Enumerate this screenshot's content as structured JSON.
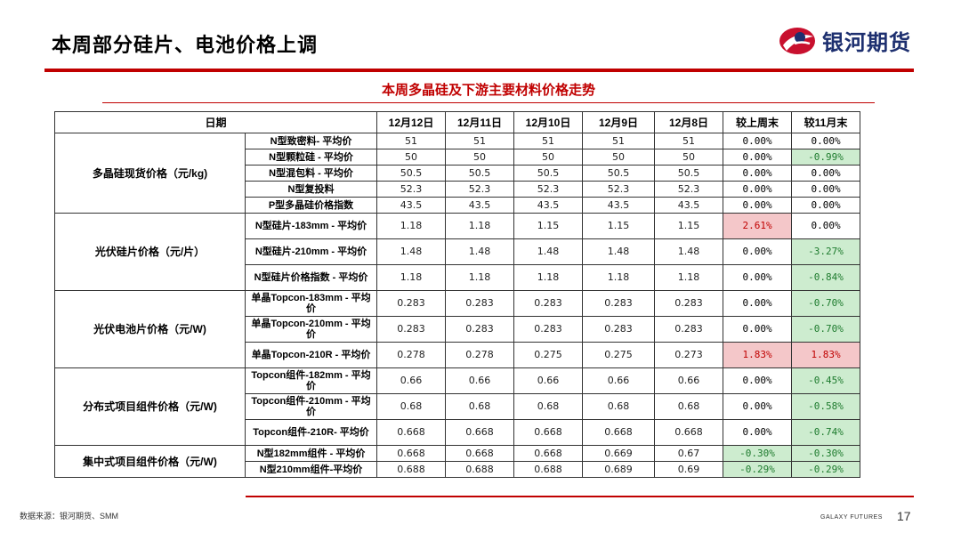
{
  "header": {
    "title": "本周部分硅片、电池价格上调",
    "logo_text": "银河期货"
  },
  "table": {
    "title": "本周多晶硅及下游主要材料价格走势",
    "columns": [
      "日期",
      "12月12日",
      "12月11日",
      "12月10日",
      "12月9日",
      "12月8日",
      "较上周末",
      "较11月末"
    ],
    "groups": [
      {
        "label": "多晶硅现货价格（元/kg)",
        "rows": [
          {
            "item": "N型致密料- 平均价",
            "values": [
              "51",
              "51",
              "51",
              "51",
              "51"
            ],
            "wow": "0.00%",
            "mom": "0.00%",
            "wow_dir": "flat",
            "mom_dir": "flat"
          },
          {
            "item": "N型颗粒硅 - 平均价",
            "values": [
              "50",
              "50",
              "50",
              "50",
              "50"
            ],
            "wow": "0.00%",
            "mom": "-0.99%",
            "wow_dir": "flat",
            "mom_dir": "down"
          },
          {
            "item": "N型混包料 - 平均价",
            "values": [
              "50.5",
              "50.5",
              "50.5",
              "50.5",
              "50.5"
            ],
            "wow": "0.00%",
            "mom": "0.00%",
            "wow_dir": "flat",
            "mom_dir": "flat"
          },
          {
            "item": "N型复投料",
            "values": [
              "52.3",
              "52.3",
              "52.3",
              "52.3",
              "52.3"
            ],
            "wow": "0.00%",
            "mom": "0.00%",
            "wow_dir": "flat",
            "mom_dir": "flat"
          },
          {
            "item": "P型多晶硅价格指数",
            "values": [
              "43.5",
              "43.5",
              "43.5",
              "43.5",
              "43.5"
            ],
            "wow": "0.00%",
            "mom": "0.00%",
            "wow_dir": "flat",
            "mom_dir": "flat"
          }
        ]
      },
      {
        "label": "光伏硅片价格（元/片）",
        "rows": [
          {
            "item": "N型硅片-183mm - 平均价",
            "values": [
              "1.18",
              "1.18",
              "1.15",
              "1.15",
              "1.15"
            ],
            "wow": "2.61%",
            "mom": "0.00%",
            "wow_dir": "up",
            "mom_dir": "flat"
          },
          {
            "item": "N型硅片-210mm - 平均价",
            "values": [
              "1.48",
              "1.48",
              "1.48",
              "1.48",
              "1.48"
            ],
            "wow": "0.00%",
            "mom": "-3.27%",
            "wow_dir": "flat",
            "mom_dir": "down"
          },
          {
            "item": "N型硅片价格指数 - 平均价",
            "values": [
              "1.18",
              "1.18",
              "1.18",
              "1.18",
              "1.18"
            ],
            "wow": "0.00%",
            "mom": "-0.84%",
            "wow_dir": "flat",
            "mom_dir": "down"
          }
        ]
      },
      {
        "label": "光伏电池片价格（元/W)",
        "rows": [
          {
            "item": "单晶Topcon-183mm - 平均价",
            "values": [
              "0.283",
              "0.283",
              "0.283",
              "0.283",
              "0.283"
            ],
            "wow": "0.00%",
            "mom": "-0.70%",
            "wow_dir": "flat",
            "mom_dir": "down"
          },
          {
            "item": "单晶Topcon-210mm - 平均价",
            "values": [
              "0.283",
              "0.283",
              "0.283",
              "0.283",
              "0.283"
            ],
            "wow": "0.00%",
            "mom": "-0.70%",
            "wow_dir": "flat",
            "mom_dir": "down"
          },
          {
            "item": "单晶Topcon-210R - 平均价",
            "values": [
              "0.278",
              "0.278",
              "0.275",
              "0.275",
              "0.273"
            ],
            "wow": "1.83%",
            "mom": "1.83%",
            "wow_dir": "up",
            "mom_dir": "up"
          }
        ]
      },
      {
        "label": "分布式项目组件价格（元/W)",
        "rows": [
          {
            "item": "Topcon组件-182mm - 平均价",
            "values": [
              "0.66",
              "0.66",
              "0.66",
              "0.66",
              "0.66"
            ],
            "wow": "0.00%",
            "mom": "-0.45%",
            "wow_dir": "flat",
            "mom_dir": "down"
          },
          {
            "item": "Topcon组件-210mm - 平均价",
            "values": [
              "0.68",
              "0.68",
              "0.68",
              "0.68",
              "0.68"
            ],
            "wow": "0.00%",
            "mom": "-0.58%",
            "wow_dir": "flat",
            "mom_dir": "down"
          },
          {
            "item": "Topcon组件-210R- 平均价",
            "values": [
              "0.668",
              "0.668",
              "0.668",
              "0.668",
              "0.668"
            ],
            "wow": "0.00%",
            "mom": "-0.74%",
            "wow_dir": "flat",
            "mom_dir": "down"
          }
        ]
      },
      {
        "label": "集中式项目组件价格（元/W)",
        "rows": [
          {
            "item": "N型182mm组件 - 平均价",
            "values": [
              "0.668",
              "0.668",
              "0.668",
              "0.669",
              "0.67"
            ],
            "wow": "-0.30%",
            "mom": "-0.30%",
            "wow_dir": "down",
            "mom_dir": "down"
          },
          {
            "item": "N型210mm组件-平均价",
            "values": [
              "0.688",
              "0.688",
              "0.688",
              "0.689",
              "0.69"
            ],
            "wow": "-0.29%",
            "mom": "-0.29%",
            "wow_dir": "down",
            "mom_dir": "down"
          }
        ]
      }
    ]
  },
  "footer": {
    "source": "数据来源：银河期货、SMM",
    "brand_en": "GALAXY FUTURES",
    "page_number": "17"
  },
  "colors": {
    "accent_red": "#c00000",
    "up_bg": "#f4c7c9",
    "down_bg": "#cdeccf",
    "logo_blue": "#1d2f6f"
  }
}
